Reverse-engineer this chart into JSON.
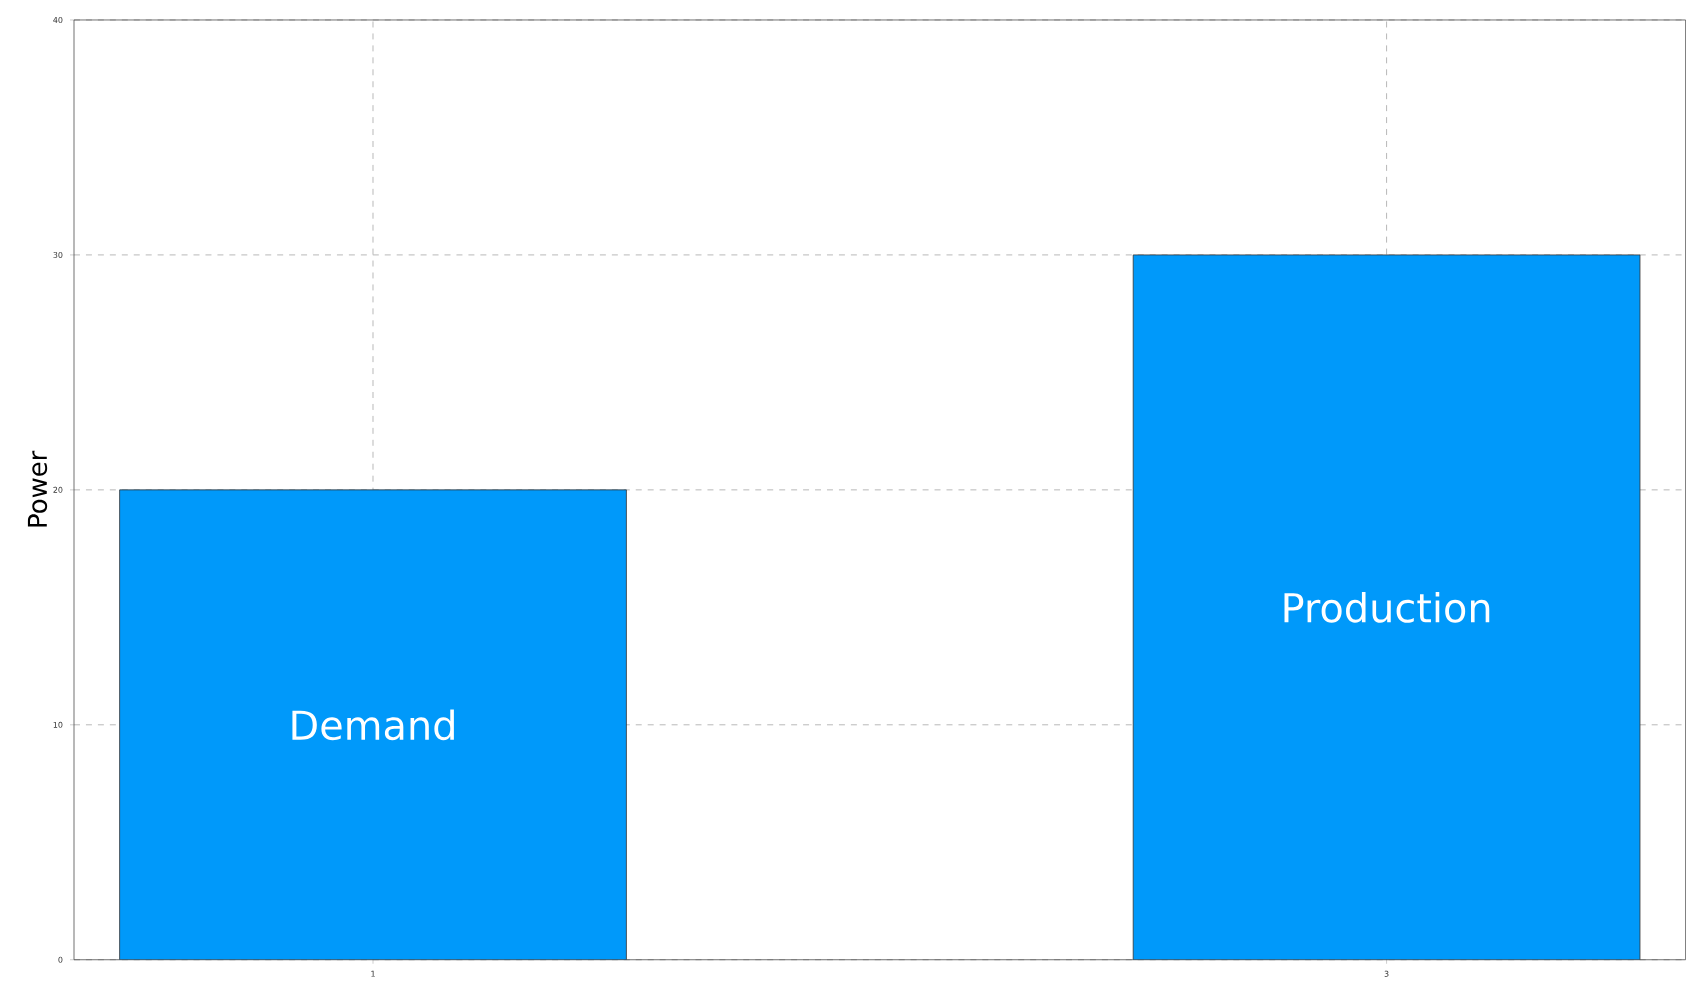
{
  "chart_data": {
    "type": "bar",
    "ylabel": "Power",
    "x": [
      1,
      3
    ],
    "values": [
      20,
      30
    ],
    "color": "#0099fa",
    "xlim": [
      0.41,
      3.59
    ],
    "ylim": [
      0,
      40
    ],
    "xticks": [
      1,
      3
    ],
    "yticks": [
      0,
      10,
      20,
      30,
      40
    ],
    "grid": true,
    "annotations": [
      "Demand",
      "Production"
    ]
  }
}
